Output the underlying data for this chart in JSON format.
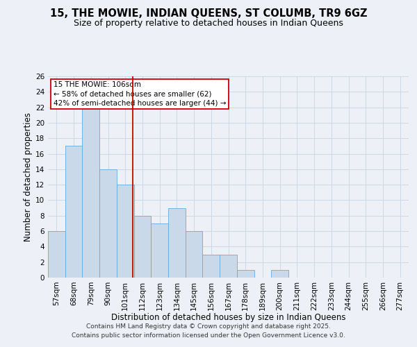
{
  "title": "15, THE MOWIE, INDIAN QUEENS, ST COLUMB, TR9 6GZ",
  "subtitle": "Size of property relative to detached houses in Indian Queens",
  "xlabel": "Distribution of detached houses by size in Indian Queens",
  "ylabel": "Number of detached properties",
  "bins": [
    "57sqm",
    "68sqm",
    "79sqm",
    "90sqm",
    "101sqm",
    "112sqm",
    "123sqm",
    "134sqm",
    "145sqm",
    "156sqm",
    "167sqm",
    "178sqm",
    "189sqm",
    "200sqm",
    "211sqm",
    "222sqm",
    "233sqm",
    "244sqm",
    "255sqm",
    "266sqm",
    "277sqm"
  ],
  "values": [
    6,
    17,
    22,
    14,
    12,
    8,
    7,
    9,
    6,
    3,
    3,
    1,
    0,
    1,
    0,
    0,
    0,
    0,
    0,
    0,
    0
  ],
  "bar_color": "#c9d9ea",
  "bar_edge_color": "#6aaad4",
  "grid_color": "#c8d4e4",
  "background_color": "#edf1f7",
  "vline_color": "#cc0000",
  "annotation_text": "15 THE MOWIE: 106sqm\n← 58% of detached houses are smaller (62)\n42% of semi-detached houses are larger (44) →",
  "annotation_box_color": "#cc0000",
  "ylim": [
    0,
    26
  ],
  "yticks": [
    0,
    2,
    4,
    6,
    8,
    10,
    12,
    14,
    16,
    18,
    20,
    22,
    24,
    26
  ],
  "footer": "Contains HM Land Registry data © Crown copyright and database right 2025.\nContains public sector information licensed under the Open Government Licence v3.0.",
  "title_fontsize": 10.5,
  "subtitle_fontsize": 9,
  "xlabel_fontsize": 8.5,
  "ylabel_fontsize": 8.5,
  "tick_fontsize": 7.5,
  "annotation_fontsize": 7.5,
  "footer_fontsize": 6.5
}
